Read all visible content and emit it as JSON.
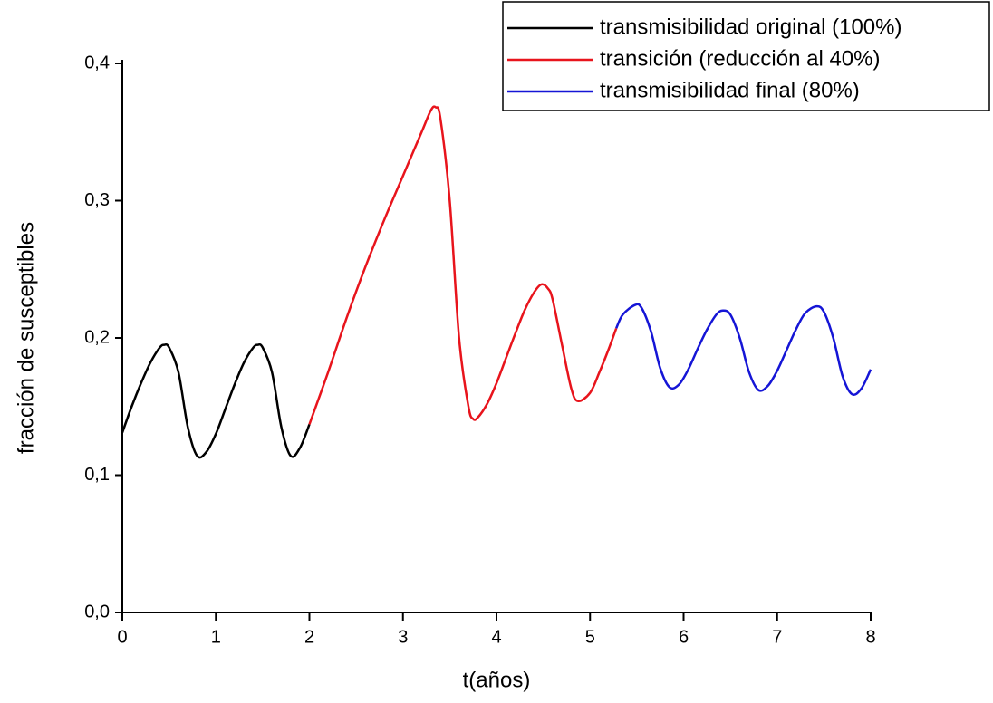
{
  "chart_data": {
    "type": "line",
    "x_label": "t(años)",
    "y_label": "fracción de susceptibles",
    "xlim": [
      0,
      8
    ],
    "xticks": [
      0,
      1,
      2,
      3,
      4,
      5,
      6,
      7,
      8
    ],
    "ylim": [
      0,
      0.4
    ],
    "yticks": [
      {
        "value": 0,
        "label": "0,0"
      },
      {
        "value": 0.1,
        "label": "0,1"
      },
      {
        "value": 0.2,
        "label": "0,2"
      },
      {
        "value": 0.3,
        "label": "0,3"
      },
      {
        "value": 0.4,
        "label": "0,4"
      }
    ],
    "grid": false,
    "legend": "top-right",
    "series": [
      {
        "name": "transmisibilidad original (100%)",
        "color": "#000000",
        "x": [
          0,
          0.1,
          0.2,
          0.3,
          0.4,
          0.45,
          0.5,
          0.6,
          0.7,
          0.8,
          0.9,
          1.0,
          1.1,
          1.2,
          1.3,
          1.4,
          1.45,
          1.5,
          1.6,
          1.7,
          1.8,
          1.9,
          2.0
        ],
        "values": [
          0.131,
          0.15,
          0.167,
          0.182,
          0.193,
          0.195,
          0.193,
          0.175,
          0.135,
          0.114,
          0.117,
          0.13,
          0.148,
          0.166,
          0.182,
          0.193,
          0.195,
          0.193,
          0.175,
          0.135,
          0.114,
          0.12,
          0.137
        ]
      },
      {
        "name": "transición (reducción al 40%)",
        "color": "#e8141c",
        "x": [
          2.0,
          2.2,
          2.4,
          2.6,
          2.8,
          3.0,
          3.2,
          3.3,
          3.35,
          3.4,
          3.5,
          3.6,
          3.7,
          3.75,
          3.8,
          3.9,
          4.0,
          4.1,
          4.2,
          4.3,
          4.4,
          4.48,
          4.55,
          4.6,
          4.7,
          4.8,
          4.87,
          5.0,
          5.1,
          5.2,
          5.28
        ],
        "values": [
          0.137,
          0.175,
          0.215,
          0.252,
          0.286,
          0.318,
          0.35,
          0.366,
          0.368,
          0.36,
          0.3,
          0.2,
          0.15,
          0.141,
          0.142,
          0.152,
          0.167,
          0.185,
          0.203,
          0.22,
          0.233,
          0.239,
          0.236,
          0.228,
          0.195,
          0.163,
          0.154,
          0.16,
          0.175,
          0.192,
          0.207
        ]
      },
      {
        "name": "transmisibilidad final (80%)",
        "color": "#1515d6",
        "x": [
          5.28,
          5.35,
          5.48,
          5.55,
          5.65,
          5.75,
          5.85,
          5.95,
          6.05,
          6.15,
          6.25,
          6.35,
          6.42,
          6.5,
          6.6,
          6.7,
          6.8,
          6.9,
          7.0,
          7.1,
          7.2,
          7.3,
          7.42,
          7.5,
          7.6,
          7.7,
          7.8,
          7.9,
          8.0
        ],
        "values": [
          0.207,
          0.217,
          0.224,
          0.222,
          0.205,
          0.178,
          0.164,
          0.166,
          0.177,
          0.192,
          0.206,
          0.217,
          0.22,
          0.217,
          0.2,
          0.175,
          0.162,
          0.165,
          0.176,
          0.191,
          0.206,
          0.218,
          0.223,
          0.219,
          0.2,
          0.172,
          0.159,
          0.163,
          0.177
        ]
      }
    ]
  }
}
